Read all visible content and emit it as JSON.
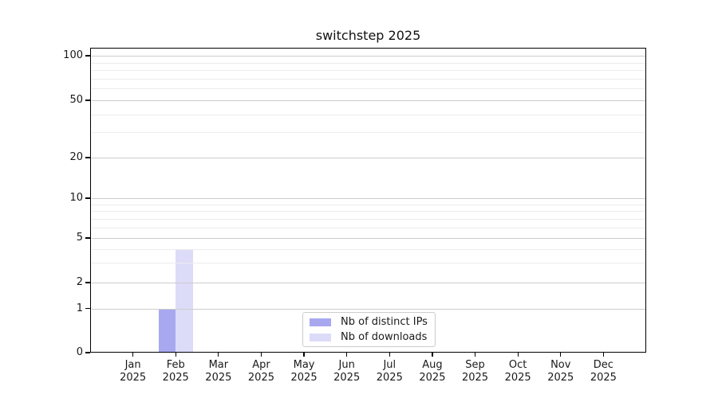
{
  "title": "switchstep 2025",
  "chart_data": {
    "type": "bar",
    "title": "switchstep 2025",
    "categories": [
      "Jan 2025",
      "Feb 2025",
      "Mar 2025",
      "Apr 2025",
      "May 2025",
      "Jun 2025",
      "Jul 2025",
      "Aug 2025",
      "Sep 2025",
      "Oct 2025",
      "Nov 2025",
      "Dec 2025"
    ],
    "series": [
      {
        "name": "Nb of distinct IPs",
        "color": "#a8a8f0",
        "values": [
          0,
          1,
          0,
          0,
          0,
          0,
          0,
          0,
          0,
          0,
          0,
          0
        ]
      },
      {
        "name": "Nb of downloads",
        "color": "#dcdcf8",
        "values": [
          0,
          4,
          0,
          0,
          0,
          0,
          0,
          0,
          0,
          0,
          0,
          0
        ]
      }
    ],
    "xlabel": "",
    "ylabel": "",
    "ylim": [
      0,
      100
    ],
    "y_axis_scale": "log-like",
    "y_major_ticks": [
      0,
      1,
      2,
      5,
      10,
      20,
      50,
      100
    ],
    "y_minor_ticks": [
      3,
      4,
      6,
      7,
      8,
      9,
      30,
      40,
      60,
      70,
      80,
      90
    ],
    "grid": true,
    "legend_position": "lower center"
  },
  "colors": {
    "spine": "#000000",
    "grid_major": "#cccccc",
    "grid_minor": "#ececec",
    "text": "#1a1a1a",
    "legend_border": "#cccccc",
    "background": "#ffffff"
  }
}
